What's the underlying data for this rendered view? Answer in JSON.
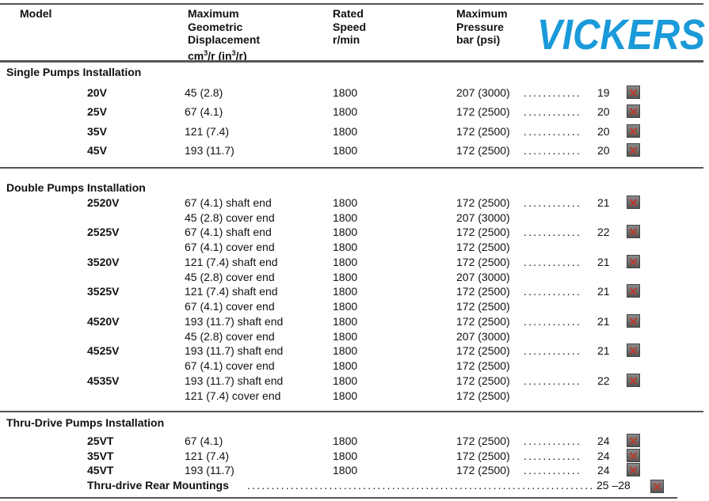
{
  "header": {
    "model": "Model",
    "displacement": [
      "Maximum",
      "Geometric",
      "Displacement"
    ],
    "displacement_unit": {
      "a": "cm",
      "b": "3",
      "c": "/r (in",
      "d": "3",
      "e": "/r)"
    },
    "speed": [
      "Rated",
      "Speed",
      "r/min"
    ],
    "pressure": [
      "Maximum",
      "Pressure",
      "bar (psi)"
    ],
    "logo": "VICKERS",
    "logo_color": "#1a9ad9"
  },
  "sections": [
    {
      "title": "Single Pumps Installation",
      "rows": [
        {
          "model": "20V",
          "disp": "45 (2.8)",
          "speed": "1800",
          "pressure": "207 (3000)",
          "page": "19"
        },
        {
          "model": "25V",
          "disp": "67 (4.1)",
          "speed": "1800",
          "pressure": "172 (2500)",
          "page": "20"
        },
        {
          "model": "35V",
          "disp": "121 (7.4)",
          "speed": "1800",
          "pressure": "172 (2500)",
          "page": "20"
        },
        {
          "model": "45V",
          "disp": "193 (11.7)",
          "speed": "1800",
          "pressure": "172 (2500)",
          "page": "20"
        }
      ]
    },
    {
      "title": "Double Pumps Installation",
      "rows": [
        {
          "model": "2520V",
          "disp": "67 (4.1) shaft end",
          "speed": "1800",
          "pressure": "172 (2500)",
          "page": "21"
        },
        {
          "model": "",
          "disp": "45 (2.8) cover end",
          "speed": "1800",
          "pressure": "207 (3000)",
          "page": ""
        },
        {
          "model": "2525V",
          "disp": "67 (4.1) shaft end",
          "speed": "1800",
          "pressure": "172 (2500)",
          "page": "22"
        },
        {
          "model": "",
          "disp": "67 (4.1) cover end",
          "speed": "1800",
          "pressure": "172 (2500)",
          "page": ""
        },
        {
          "model": "3520V",
          "disp": "121 (7.4) shaft end",
          "speed": "1800",
          "pressure": "172 (2500)",
          "page": "21"
        },
        {
          "model": "",
          "disp": "45 (2.8) cover end",
          "speed": "1800",
          "pressure": "207 (3000)",
          "page": ""
        },
        {
          "model": "3525V",
          "disp": "121 (7.4) shaft end",
          "speed": "1800",
          "pressure": "172 (2500)",
          "page": "21"
        },
        {
          "model": "",
          "disp": "67 (4.1) cover end",
          "speed": "1800",
          "pressure": "172 (2500)",
          "page": ""
        },
        {
          "model": "4520V",
          "disp": "193 (11.7) shaft end",
          "speed": "1800",
          "pressure": "172 (2500)",
          "page": "21"
        },
        {
          "model": "",
          "disp": "45 (2.8) cover end",
          "speed": "1800",
          "pressure": "207 (3000)",
          "page": ""
        },
        {
          "model": "4525V",
          "disp": "193 (11.7) shaft end",
          "speed": "1800",
          "pressure": "172 (2500)",
          "page": "21"
        },
        {
          "model": "",
          "disp": "67 (4.1) cover end",
          "speed": "1800",
          "pressure": "172 (2500)",
          "page": ""
        },
        {
          "model": "4535V",
          "disp": "193 (11.7) shaft end",
          "speed": "1800",
          "pressure": "172 (2500)",
          "page": "22"
        },
        {
          "model": "",
          "disp": "121 (7.4) cover end",
          "speed": "1800",
          "pressure": "172 (2500)",
          "page": ""
        }
      ]
    },
    {
      "title": "Thru-Drive Pumps Installation",
      "rows": [
        {
          "model": "25VT",
          "disp": "67 (4.1)",
          "speed": "1800",
          "pressure": "172 (2500)",
          "page": "24"
        },
        {
          "model": "35VT",
          "disp": "121 (7.4)",
          "speed": "1800",
          "pressure": "172 (2500)",
          "page": "24"
        },
        {
          "model": "45VT",
          "disp": "193 (11.7)",
          "speed": "1800",
          "pressure": "172 (2500)",
          "page": "24"
        }
      ]
    }
  ],
  "rear": {
    "label": "Thru-drive Rear Mountings",
    "page": "25 –28"
  }
}
